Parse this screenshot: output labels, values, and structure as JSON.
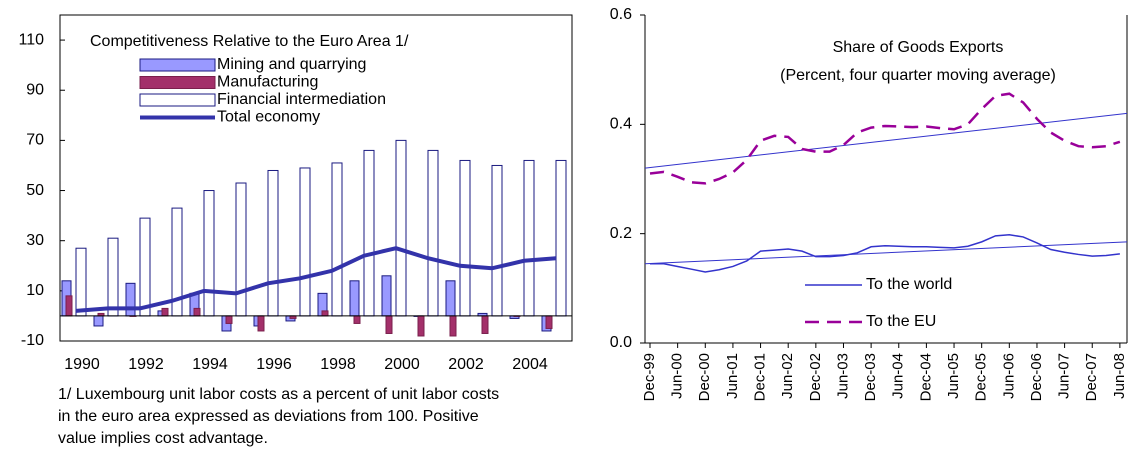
{
  "chart_data": [
    {
      "type": "bar",
      "title": "Competitiveness Relative to the Euro Area 1/",
      "categories": [
        "1990",
        null,
        "1992",
        null,
        "1994",
        null,
        "1996",
        null,
        "1998",
        null,
        "2000",
        null,
        "2002",
        null,
        "2004",
        null
      ],
      "series": [
        {
          "name": "Mining and quarrying",
          "color": "#9999ff",
          "values": [
            14,
            -4,
            13,
            2,
            9,
            -6,
            -4,
            -2,
            9,
            14,
            16,
            0,
            14,
            1,
            -1,
            -6
          ]
        },
        {
          "name": "Manufacturing",
          "color": "#a3306a",
          "values": [
            8,
            1,
            0,
            3,
            3,
            -3,
            -6,
            -1,
            2,
            -3,
            -7,
            -8,
            -8,
            -7,
            0,
            -5
          ]
        },
        {
          "name": "Financial intermediation",
          "color": "#ffffff",
          "values": [
            27,
            31,
            39,
            43,
            50,
            53,
            58,
            59,
            61,
            66,
            70,
            66,
            62,
            60,
            62,
            62
          ]
        },
        {
          "name": "Total economy",
          "type": "line",
          "color": "#3333aa",
          "values": [
            2,
            3,
            3,
            6,
            10,
            9,
            13,
            15,
            18,
            24,
            27,
            23,
            20,
            19,
            22,
            23
          ]
        }
      ],
      "ylim": [
        -10,
        120
      ],
      "yticks": [
        -10,
        10,
        30,
        50,
        70,
        90,
        110
      ],
      "grid": false,
      "footnote": "1/ Luxembourg unit labor costs as a percent of unit labor costs in the euro area expressed as deviations from 100. Positive value implies cost advantage."
    },
    {
      "type": "line",
      "title": "Share of Goods Exports",
      "subtitle": "(Percent, four quarter moving average)",
      "categories": [
        "Dec-99",
        null,
        "Jun-00",
        null,
        "Dec-00",
        null,
        "Jun-01",
        null,
        "Dec-01",
        null,
        "Jun-02",
        null,
        "Dec-02",
        null,
        "Jun-03",
        null,
        "Dec-03",
        null,
        "Jun-04",
        null,
        "Dec-04",
        null,
        "Jun-05",
        null,
        "Dec-05",
        null,
        "Jun-06",
        null,
        "Dec-06",
        null,
        "Jun-07",
        null,
        "Dec-07",
        null,
        "Jun-08"
      ],
      "series": [
        {
          "name": "To the world",
          "color": "#3333cc",
          "dash": false,
          "values": [
            0.145,
            0.145,
            0.14,
            0.135,
            0.13,
            0.134,
            0.14,
            0.15,
            0.168,
            0.17,
            0.172,
            0.168,
            0.158,
            0.158,
            0.16,
            0.165,
            0.176,
            0.178,
            0.177,
            0.176,
            0.176,
            0.175,
            0.174,
            0.177,
            0.185,
            0.196,
            0.198,
            0.194,
            0.183,
            0.171,
            0.166,
            0.162,
            0.159,
            0.16,
            0.163
          ]
        },
        {
          "name": "To the EU",
          "color": "#990099",
          "dash": true,
          "values": [
            0.31,
            0.313,
            0.304,
            0.294,
            0.292,
            0.3,
            0.312,
            0.335,
            0.37,
            0.379,
            0.377,
            0.355,
            0.35,
            0.35,
            0.362,
            0.385,
            0.394,
            0.397,
            0.396,
            0.395,
            0.396,
            0.393,
            0.391,
            0.4,
            0.428,
            0.452,
            0.456,
            0.44,
            0.41,
            0.385,
            0.37,
            0.36,
            0.358,
            0.36,
            0.368
          ]
        }
      ],
      "trend_lines": [
        {
          "color": "#3333cc",
          "values": [
            0.145,
            0.185
          ]
        },
        {
          "color": "#3333cc",
          "values": [
            0.32,
            0.42
          ]
        }
      ],
      "ylim": [
        0,
        0.6
      ],
      "yticks": [
        {
          "value": 0,
          "label": "0.0"
        },
        0.2,
        0.4,
        0.6
      ],
      "grid": false
    }
  ]
}
